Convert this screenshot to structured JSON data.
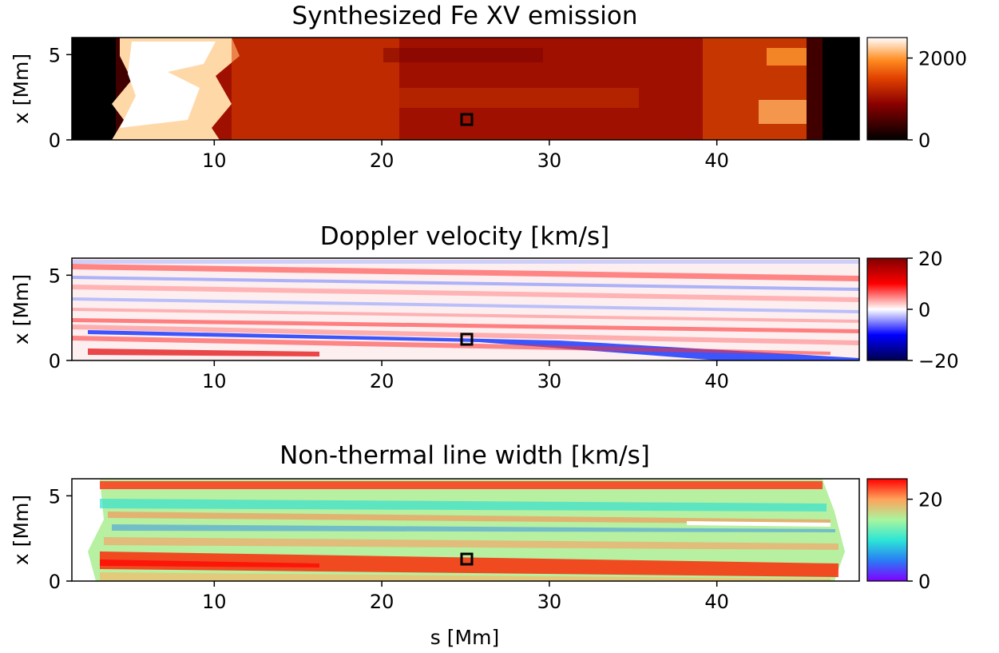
{
  "chart_data": [
    {
      "type": "heatmap",
      "title": "Synthesized Fe XV emission",
      "ylabel": "x [Mm]",
      "xlabel": "",
      "xlim": [
        1.5,
        48.5
      ],
      "ylim": [
        0,
        6
      ],
      "xticks": [
        "10",
        "20",
        "30",
        "40"
      ],
      "yticks": [
        "0",
        "5"
      ],
      "colormap": "gist_heat",
      "colorbar": {
        "range": [
          0,
          2500
        ],
        "ticks": [
          "0",
          "2000"
        ]
      },
      "marker": {
        "x": 25,
        "y": 1.2
      }
    },
    {
      "type": "heatmap",
      "title": "Doppler velocity [km/s]",
      "ylabel": "x [Mm]",
      "xlabel": "",
      "xlim": [
        1.5,
        48.5
      ],
      "ylim": [
        0,
        6
      ],
      "xticks": [
        "10",
        "20",
        "30",
        "40"
      ],
      "yticks": [
        "0",
        "5"
      ],
      "colormap": "seismic",
      "colorbar": {
        "range": [
          -20,
          20
        ],
        "ticks": [
          "20",
          "0",
          "−20"
        ]
      },
      "marker": {
        "x": 25,
        "y": 1.2
      }
    },
    {
      "type": "heatmap",
      "title": "Non-thermal line width [km/s]",
      "ylabel": "x [Mm]",
      "xlabel": "s [Mm]",
      "xlim": [
        1.5,
        48.5
      ],
      "ylim": [
        0,
        6
      ],
      "xticks": [
        "10",
        "20",
        "30",
        "40"
      ],
      "yticks": [
        "0",
        "5"
      ],
      "colormap": "rainbow",
      "colorbar": {
        "range": [
          0,
          25
        ],
        "ticks": [
          "20",
          "0"
        ]
      },
      "marker": {
        "x": 25,
        "y": 1.2
      }
    }
  ]
}
